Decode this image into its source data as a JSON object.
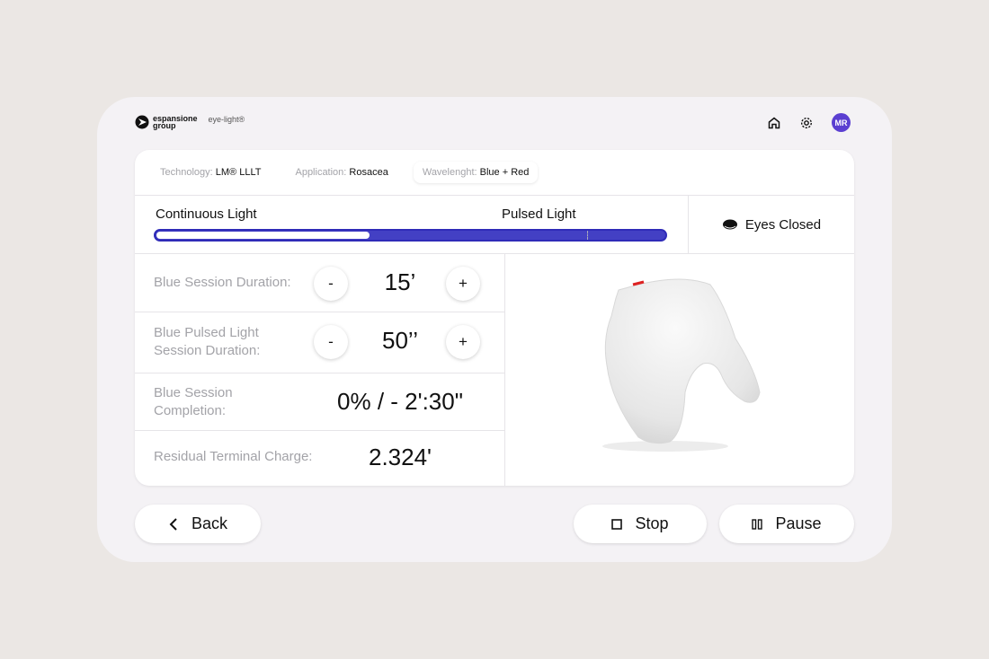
{
  "header": {
    "brand_line1": "espansione",
    "brand_line2": "group",
    "product": "eye-light®",
    "avatar_initials": "MR"
  },
  "info": [
    {
      "key": "Technology:",
      "value": "LM® LLLT"
    },
    {
      "key": "Application:",
      "value": "Rosacea"
    },
    {
      "key": "Wavelenght:",
      "value": "Blue + Red"
    }
  ],
  "progress": {
    "label_continuous": "Continuous Light",
    "label_pulsed": "Pulsed Light",
    "percent": 42,
    "accent": "#4340c4"
  },
  "eyes": {
    "label": "Eyes Closed"
  },
  "params": {
    "blue_duration": {
      "label": "Blue Session Duration:",
      "value": "15’",
      "minus": "-",
      "plus": "+"
    },
    "pulsed_duration": {
      "label": "Blue Pulsed Light Session Duration:",
      "value": "50’’",
      "minus": "-",
      "plus": "+"
    },
    "completion": {
      "label": "Blue Session Completion:",
      "value": "0% / - 2':30\""
    },
    "residual": {
      "label": "Residual Terminal Charge:",
      "value": "2.324'"
    }
  },
  "buttons": {
    "back": "Back",
    "stop": "Stop",
    "pause": "Pause"
  }
}
